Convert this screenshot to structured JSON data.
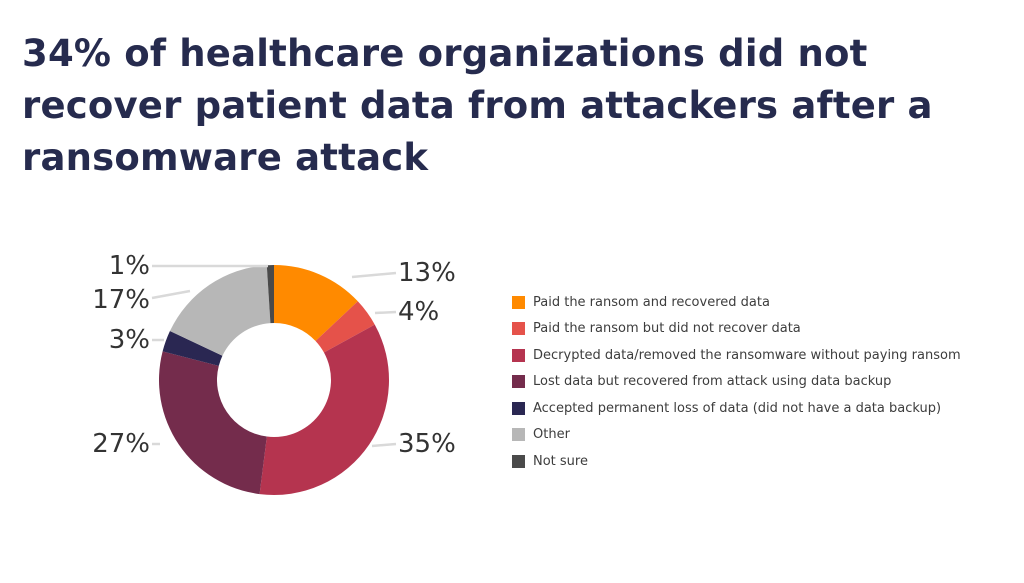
{
  "page": {
    "title": "34% of healthcare organizations did not recover patient data from attackers after a ransomware attack"
  },
  "chart_data": {
    "type": "pie",
    "donut": true,
    "title": "34% of healthcare organizations did not recover patient data from attackers after a ransomware attack",
    "legend_position": "right",
    "slices": [
      {
        "label": "Paid the ransom and recovered data",
        "value": 13,
        "value_label": "13%",
        "color": "#ff8a00"
      },
      {
        "label": "Paid the ransom but did not recover data",
        "value": 4,
        "value_label": "4%",
        "color": "#e5524a"
      },
      {
        "label": "Decrypted data/removed the ransomware without paying ransom",
        "value": 35,
        "value_label": "35%",
        "color": "#b5344f"
      },
      {
        "label": "Lost data but recovered from attack using data backup",
        "value": 27,
        "value_label": "27%",
        "color": "#742c4c"
      },
      {
        "label": "Accepted permanent loss of data (did not have a data backup)",
        "value": 3,
        "value_label": "3%",
        "color": "#2a2752"
      },
      {
        "label": "Other",
        "value": 17,
        "value_label": "17%",
        "color": "#b7b7b7"
      },
      {
        "label": "Not sure",
        "value": 1,
        "value_label": "1%",
        "color": "#4a4a4a"
      }
    ]
  }
}
